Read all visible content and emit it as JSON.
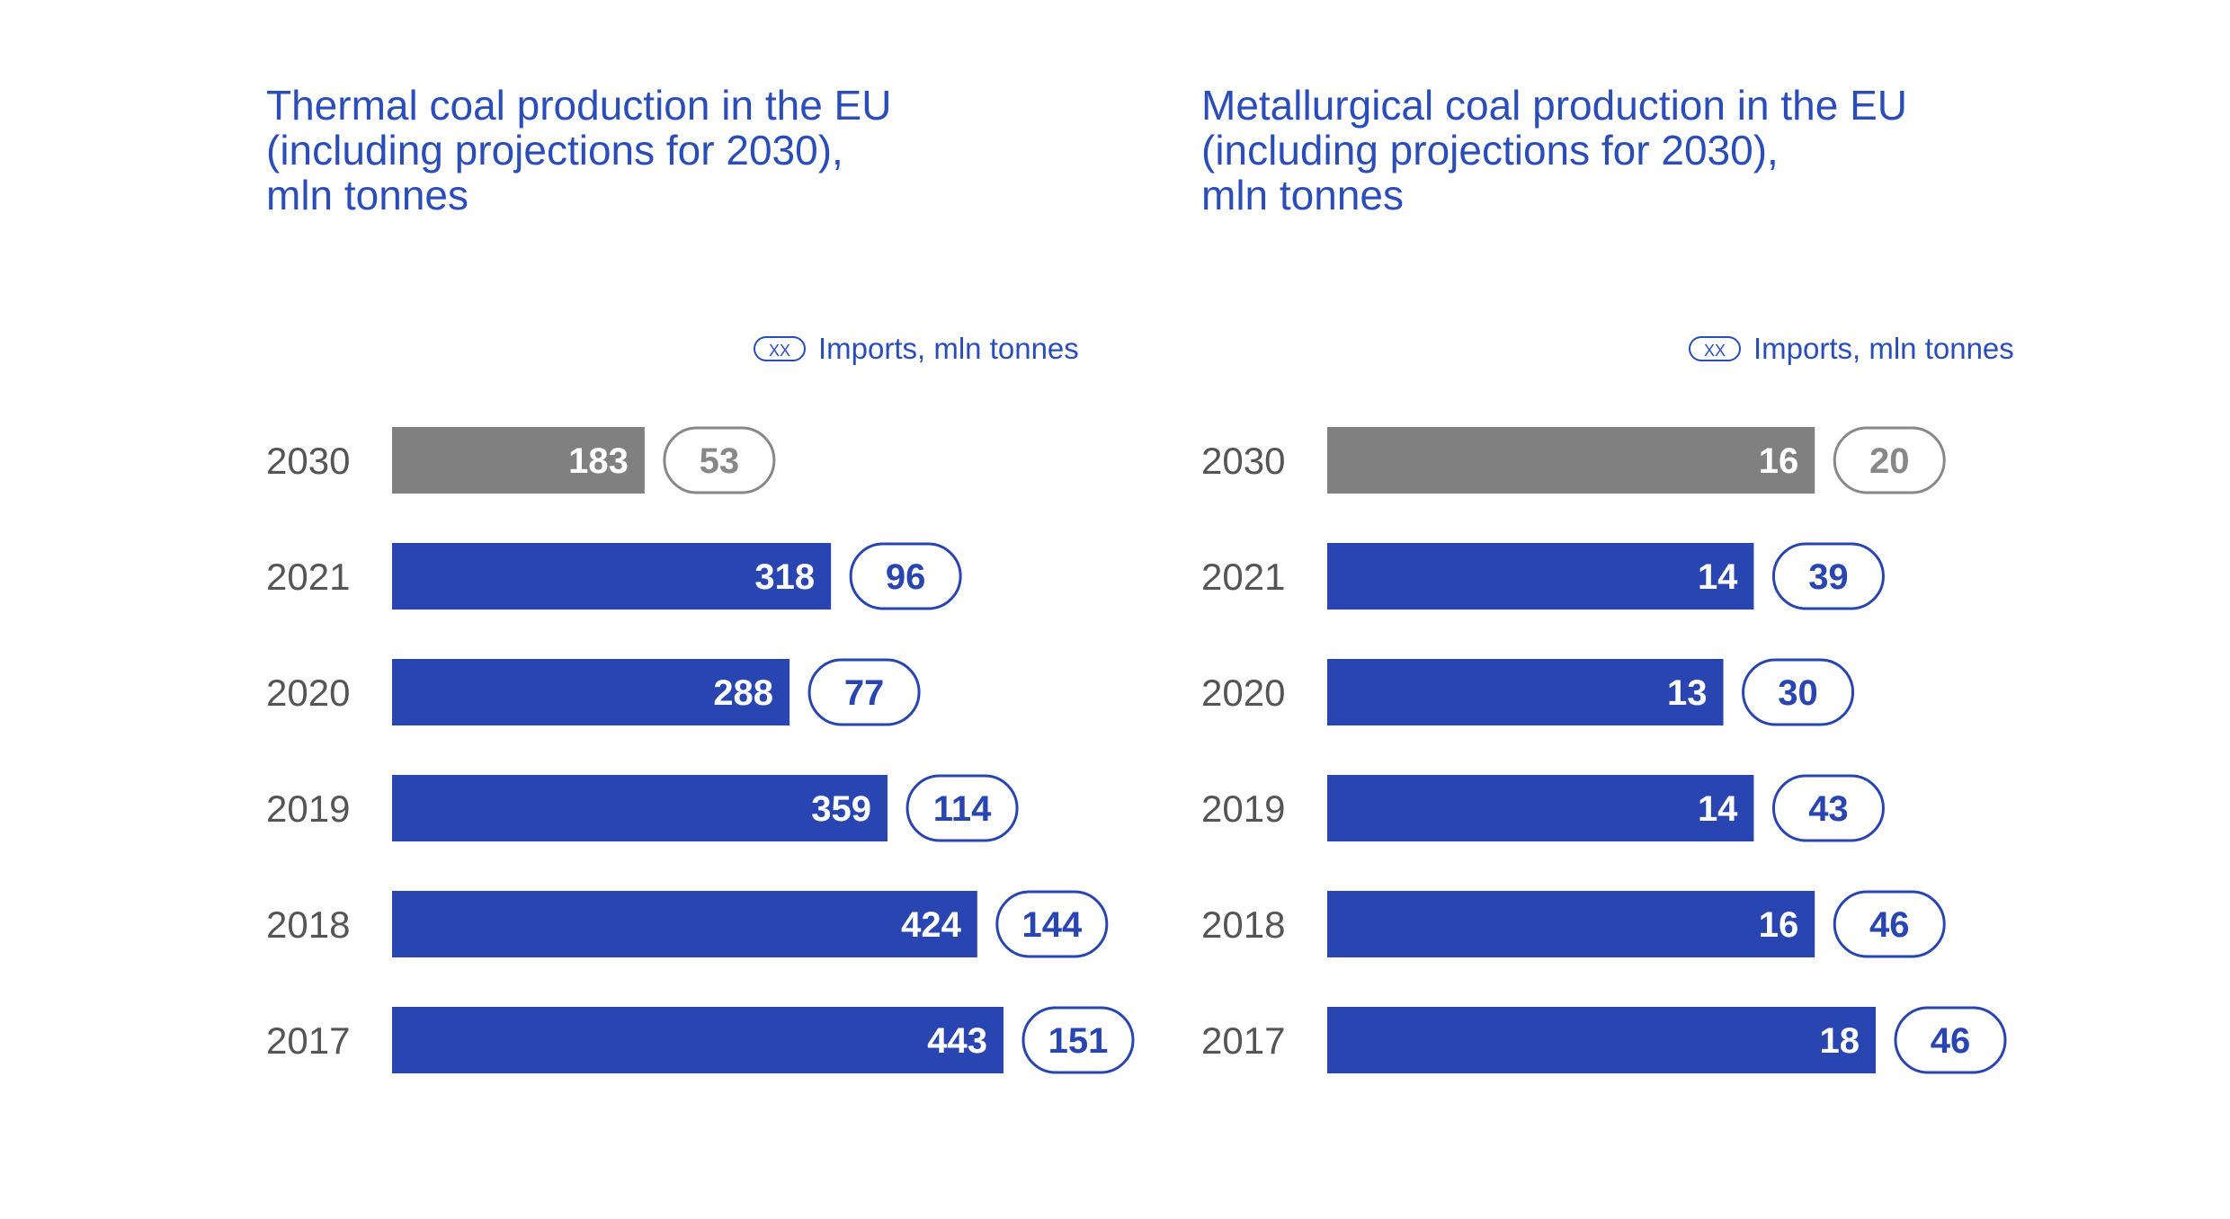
{
  "colors": {
    "title": "#2a4dba",
    "bar": "#2845b1",
    "projection_bar": "#808080",
    "year_label": "#555555",
    "pill_projection": "#888888"
  },
  "chart_data": [
    {
      "type": "bar",
      "orientation": "horizontal",
      "title_lines": [
        "Thermal coal production in the EU",
        "(including projections for 2030),",
        "mln tonnes"
      ],
      "legend": {
        "pill_text": "XX",
        "label": "Imports, mln tonnes",
        "placement": "top-right"
      },
      "categories": [
        "2030",
        "2021",
        "2020",
        "2019",
        "2018",
        "2017"
      ],
      "series": [
        {
          "values": [
            183,
            318,
            288,
            359,
            424,
            443
          ]
        },
        {
          "name": "Imports, mln tonnes",
          "values": [
            53,
            96,
            77,
            114,
            144,
            151
          ]
        }
      ],
      "projection_categories": [
        "2030"
      ],
      "xlim": [
        0,
        443
      ],
      "grid": false
    },
    {
      "type": "bar",
      "orientation": "horizontal",
      "title_lines": [
        "Metallurgical coal production in the EU",
        "(including projections for 2030),",
        "mln tonnes"
      ],
      "legend": {
        "pill_text": "XX",
        "label": "Imports, mln tonnes",
        "placement": "top-right"
      },
      "categories": [
        "2030",
        "2021",
        "2020",
        "2019",
        "2018",
        "2017"
      ],
      "series": [
        {
          "values": [
            16,
            14,
            13,
            14,
            16,
            18
          ]
        },
        {
          "name": "Imports, mln tonnes",
          "values": [
            20,
            39,
            30,
            43,
            46,
            46
          ]
        }
      ],
      "projection_categories": [
        "2030"
      ],
      "xlim": [
        0,
        18
      ],
      "grid": false
    }
  ]
}
